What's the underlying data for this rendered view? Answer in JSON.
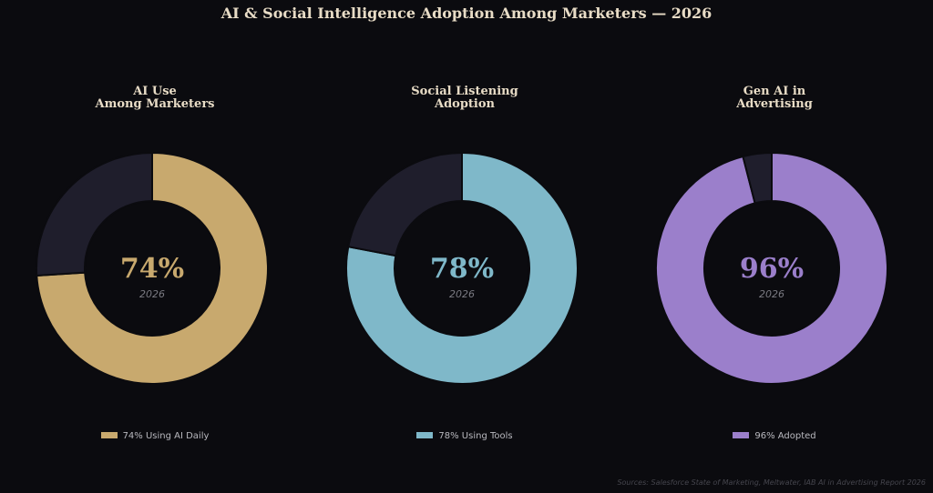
{
  "title": "AI & Social Intelligence Adoption Among Marketers — 2026",
  "source": "Sources: Salesforce State of Marketing, Meltwater, IAB AI in Advertising Report 2026",
  "colors": {
    "background": "#0b0b0f",
    "remainder": "#1f1e2c",
    "divider": "#0b0b0f"
  },
  "chart_data": [
    {
      "type": "pie",
      "title_lines": [
        "AI Use",
        "Among Marketers"
      ],
      "categories": [
        "74% Using AI Daily",
        ""
      ],
      "values": [
        74,
        26
      ],
      "center_label": "74%",
      "center_sublabel": "2026",
      "legend": "74% Using AI Daily",
      "color": "#c8a96e"
    },
    {
      "type": "pie",
      "title_lines": [
        "Social Listening",
        "Adoption"
      ],
      "categories": [
        "78% Using Tools",
        ""
      ],
      "values": [
        78,
        22
      ],
      "center_label": "78%",
      "center_sublabel": "2026",
      "legend": "78% Using Tools",
      "color": "#7fb8c9"
    },
    {
      "type": "pie",
      "title_lines": [
        "Gen AI in",
        "Advertising"
      ],
      "categories": [
        "96% Adopted",
        ""
      ],
      "values": [
        96,
        4
      ],
      "center_label": "96%",
      "center_sublabel": "2026",
      "legend": "96% Adopted",
      "color": "#9b7fcb"
    }
  ]
}
